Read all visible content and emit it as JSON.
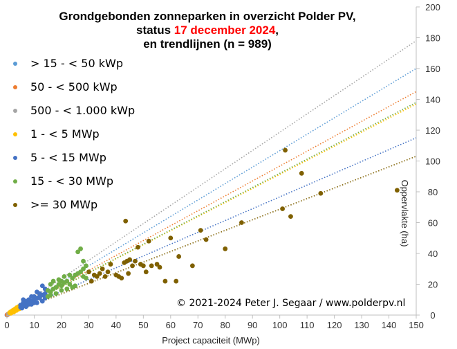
{
  "title": {
    "line1": "Grondgebonden zonneparken in overzicht Polder PV,",
    "line2_prefix": "status ",
    "line2_date": "17 december 2024",
    "line2_suffix": ",",
    "line3": "en trendlijnen  (n = 989)"
  },
  "copyright": "© 2021-2024  Peter J. Segaar / www.polderpv.nl",
  "colors": {
    "c1": "#5b9bd5",
    "c2": "#ed7d31",
    "c3": "#a5a5a5",
    "c4": "#ffc000",
    "c5": "#4472c4",
    "c6": "#70ad47",
    "c7": "#7f6000"
  },
  "chart_data": {
    "type": "scatter",
    "xlabel": "Project capaciteit (MWp)",
    "ylabel": "Oppervlakte  (ha)",
    "xlim": [
      0,
      150
    ],
    "ylim": [
      0,
      200
    ],
    "xticks": [
      "0",
      "10",
      "20",
      "30",
      "40",
      "50",
      "60",
      "70",
      "80",
      "90",
      "100",
      "110",
      "120",
      "130",
      "140",
      "150"
    ],
    "yticks": [
      "0",
      "20",
      "40",
      "60",
      "80",
      "100",
      "120",
      "140",
      "160",
      "180",
      "200"
    ],
    "legend_position": "top-left",
    "series": [
      {
        "name": "> 15 - < 50 kWp",
        "color": "#5b9bd5",
        "trend_slope": 1.067,
        "points": [
          [
            0.02,
            0.04
          ],
          [
            0.03,
            0.05
          ],
          [
            0.04,
            0.05
          ]
        ]
      },
      {
        "name": "50 - < 500 kWp",
        "color": "#ed7d31",
        "trend_slope": 0.967,
        "points": [
          [
            0.1,
            0.2
          ],
          [
            0.2,
            0.3
          ],
          [
            0.3,
            0.4
          ],
          [
            0.4,
            0.5
          ],
          [
            0.45,
            0.6
          ]
        ]
      },
      {
        "name": "500 - < 1.000 kWp",
        "color": "#a5a5a5",
        "trend_slope": 1.187,
        "points": [
          [
            0.6,
            0.8
          ],
          [
            0.7,
            1.0
          ],
          [
            0.8,
            1.1
          ],
          [
            0.9,
            1.2
          ],
          [
            0.95,
            1.0
          ]
        ]
      },
      {
        "name": "1 - < 5 MWp",
        "color": "#ffc000",
        "trend_slope": 0.913,
        "points": [
          [
            1.0,
            1.5
          ],
          [
            1.3,
            2.0
          ],
          [
            1.8,
            2.5
          ],
          [
            2.0,
            2.8
          ],
          [
            2.3,
            3.2
          ],
          [
            2.7,
            3.5
          ],
          [
            3.0,
            4.0
          ],
          [
            3.3,
            4.2
          ],
          [
            3.6,
            4.8
          ],
          [
            4.0,
            5.0
          ],
          [
            4.3,
            5.5
          ],
          [
            4.8,
            6.0
          ],
          [
            1.5,
            1.2
          ],
          [
            2.5,
            2.0
          ],
          [
            3.5,
            3.0
          ],
          [
            4.5,
            4.0
          ]
        ]
      },
      {
        "name": "5 - < 15 MWp",
        "color": "#4472c4",
        "trend_slope": 0.767,
        "points": [
          [
            5,
            5
          ],
          [
            6,
            6
          ],
          [
            7,
            7
          ],
          [
            8,
            8
          ],
          [
            9,
            9
          ],
          [
            10,
            10
          ],
          [
            11,
            11
          ],
          [
            12,
            12
          ],
          [
            13,
            13
          ],
          [
            14,
            14
          ],
          [
            6,
            8
          ],
          [
            8,
            10
          ],
          [
            10,
            12
          ],
          [
            12,
            14
          ],
          [
            14,
            17
          ],
          [
            5.5,
            4.5
          ],
          [
            7,
            5.5
          ],
          [
            9,
            7
          ],
          [
            11,
            8
          ],
          [
            13,
            9
          ],
          [
            6,
            10
          ],
          [
            9,
            12
          ],
          [
            12,
            11
          ],
          [
            14,
            11
          ],
          [
            8,
            7
          ],
          [
            10,
            8
          ],
          [
            13,
            19
          ],
          [
            11,
            15
          ],
          [
            7,
            9
          ],
          [
            5,
            6.5
          ]
        ]
      },
      {
        "name": "15 - < 30 MWp",
        "color": "#70ad47",
        "trend_slope": 0.92,
        "points": [
          [
            15,
            16
          ],
          [
            16,
            15
          ],
          [
            17,
            17
          ],
          [
            18,
            18
          ],
          [
            19,
            20
          ],
          [
            20,
            19
          ],
          [
            21,
            21
          ],
          [
            22,
            22
          ],
          [
            23,
            20
          ],
          [
            24,
            24
          ],
          [
            25,
            26
          ],
          [
            26,
            27
          ],
          [
            27,
            28
          ],
          [
            28,
            30
          ],
          [
            26,
            41
          ],
          [
            27,
            43
          ],
          [
            28,
            35
          ],
          [
            29,
            32
          ],
          [
            16,
            13
          ],
          [
            18,
            14
          ],
          [
            20,
            16
          ],
          [
            22,
            17
          ],
          [
            24,
            18
          ],
          [
            25,
            19
          ],
          [
            28,
            25
          ],
          [
            29,
            24
          ],
          [
            17,
            22
          ],
          [
            19,
            23
          ],
          [
            21,
            25
          ],
          [
            23,
            26
          ],
          [
            15,
            12
          ],
          [
            20,
            22
          ],
          [
            16,
            20
          ]
        ]
      },
      {
        "name": ">= 30 MWp",
        "color": "#7f6000",
        "trend_slope": 0.687,
        "points": [
          [
            30,
            28
          ],
          [
            31,
            22
          ],
          [
            32,
            26
          ],
          [
            33,
            25
          ],
          [
            34,
            27
          ],
          [
            35,
            30
          ],
          [
            36,
            25
          ],
          [
            37,
            28
          ],
          [
            38,
            33
          ],
          [
            40,
            26
          ],
          [
            41,
            25
          ],
          [
            42,
            24
          ],
          [
            43,
            34
          ],
          [
            43.5,
            61
          ],
          [
            44,
            35
          ],
          [
            44.5,
            27
          ],
          [
            45,
            36
          ],
          [
            46,
            32
          ],
          [
            47,
            35
          ],
          [
            48,
            44
          ],
          [
            49,
            33
          ],
          [
            50,
            32
          ],
          [
            51,
            28
          ],
          [
            52,
            48
          ],
          [
            53,
            32
          ],
          [
            55,
            33
          ],
          [
            56,
            31
          ],
          [
            58,
            22
          ],
          [
            60,
            50
          ],
          [
            62,
            22
          ],
          [
            63,
            38
          ],
          [
            68,
            32
          ],
          [
            71,
            55
          ],
          [
            73,
            49
          ],
          [
            80,
            43
          ],
          [
            86,
            60
          ],
          [
            101,
            69
          ],
          [
            102,
            107
          ],
          [
            104,
            64
          ],
          [
            108,
            92
          ],
          [
            115,
            79
          ],
          [
            143,
            81
          ]
        ]
      }
    ]
  }
}
